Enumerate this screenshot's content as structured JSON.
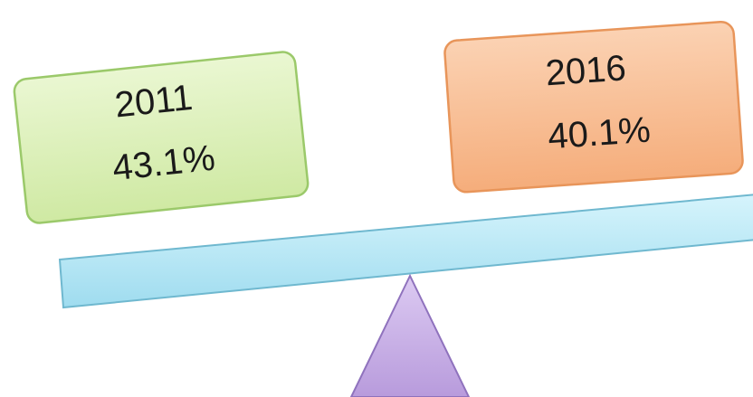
{
  "left_card": {
    "year": "2011",
    "value": "43.1%",
    "fill": "#dcf0b4",
    "stroke": "#9bc96a"
  },
  "right_card": {
    "year": "2016",
    "value": "40.1%",
    "fill": "#f9c29a",
    "stroke": "#e8955a"
  },
  "beam": {
    "fill": "#b9eaf7",
    "stroke": "#6fb8cf"
  },
  "fulcrum": {
    "fill": "#c7b0e6",
    "stroke": "#8f72bd"
  }
}
